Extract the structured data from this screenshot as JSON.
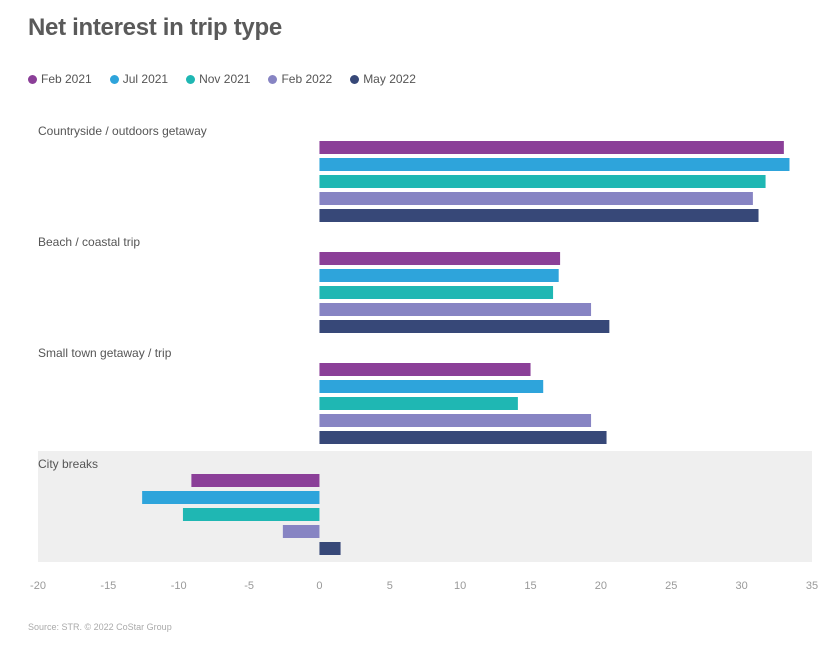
{
  "chart_data": {
    "type": "bar",
    "orientation": "horizontal",
    "title": "Net interest in trip type",
    "categories": [
      "Countryside / outdoors getaway",
      "Beach / coastal trip",
      "Small town getaway / trip",
      "City breaks"
    ],
    "series": [
      {
        "name": "Feb 2021",
        "color": "#8B3F98",
        "values": [
          33.0,
          17.1,
          15.0,
          -9.1
        ]
      },
      {
        "name": "Jul 2021",
        "color": "#2EA4DB",
        "values": [
          33.4,
          17.0,
          15.9,
          -12.6
        ]
      },
      {
        "name": "Nov 2021",
        "color": "#1FB7B3",
        "values": [
          31.7,
          16.6,
          14.1,
          -9.7
        ]
      },
      {
        "name": "Feb 2022",
        "color": "#8784C3",
        "values": [
          30.8,
          19.3,
          19.3,
          -2.6
        ]
      },
      {
        "name": "May 2022",
        "color": "#374878",
        "values": [
          31.2,
          20.6,
          20.4,
          1.5
        ]
      }
    ],
    "xlim": [
      -20,
      35
    ],
    "xticks": [
      -20,
      -15,
      -10,
      -5,
      0,
      5,
      10,
      15,
      20,
      25,
      30,
      35
    ],
    "highlighted_category": "City breaks",
    "legend": "top-left",
    "grid": false
  },
  "source": "Source: STR. © 2022 CoStar Group"
}
